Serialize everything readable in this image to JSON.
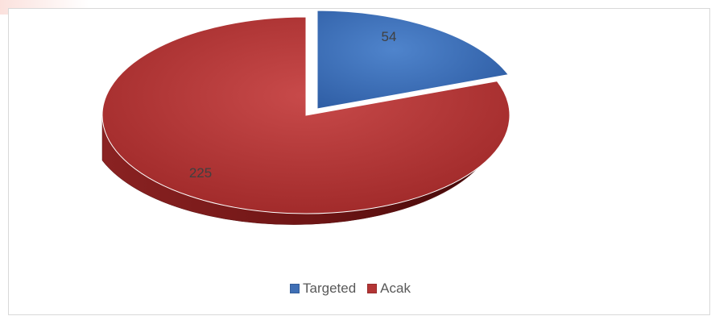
{
  "chart_data": {
    "type": "pie",
    "style": "3d-exploded",
    "categories": [
      "Targeted",
      "Acak"
    ],
    "values": [
      54,
      225
    ],
    "data_labels": [
      "54",
      "225"
    ],
    "colors": [
      "#3f6fb5",
      "#b33535"
    ],
    "legend": {
      "position": "bottom",
      "entries": [
        "Targeted",
        "Acak"
      ]
    }
  }
}
